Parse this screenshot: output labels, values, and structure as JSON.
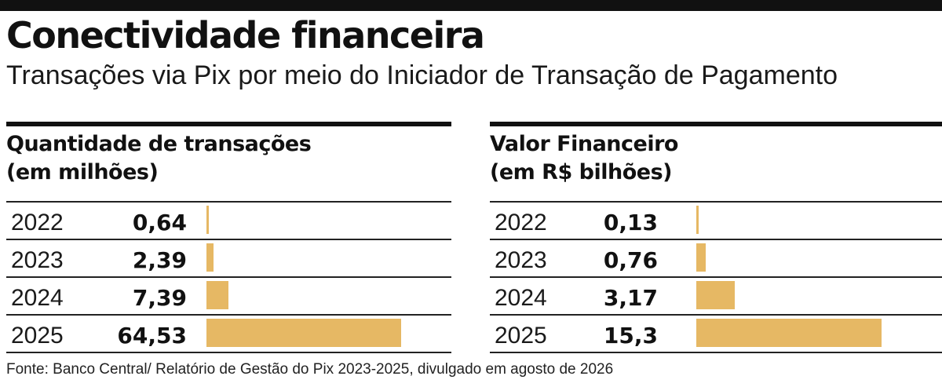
{
  "header": {
    "title": "Conectividade financeira",
    "subtitle": "Transações via Pix por meio do Iniciador de Transação de Pagamento"
  },
  "footer": {
    "source": "Fonte: Banco Central/ Relatório de Gestão do Pix 2023-2025, divulgado em agosto de 2026"
  },
  "colors": {
    "bar": "#e6b864",
    "rule": "#111111"
  },
  "chart_data": [
    {
      "type": "bar",
      "orientation": "horizontal",
      "title": "Quantidade de transações",
      "unit_label": "(em milhões)",
      "categories": [
        "2022",
        "2023",
        "2024",
        "2025"
      ],
      "values": [
        0.64,
        2.39,
        7.39,
        64.53
      ],
      "value_labels": [
        "0,64",
        "2,39",
        "7,39",
        "64,53"
      ],
      "xlim": [
        0,
        64.53
      ],
      "grid": false,
      "legend": "none"
    },
    {
      "type": "bar",
      "orientation": "horizontal",
      "title": "Valor Financeiro",
      "unit_label": "(em R$ bilhões)",
      "categories": [
        "2022",
        "2023",
        "2024",
        "2025"
      ],
      "values": [
        0.13,
        0.76,
        3.17,
        15.3
      ],
      "value_labels": [
        "0,13",
        "0,76",
        "3,17",
        "15,3"
      ],
      "xlim": [
        0,
        15.3
      ],
      "grid": false,
      "legend": "none"
    }
  ]
}
